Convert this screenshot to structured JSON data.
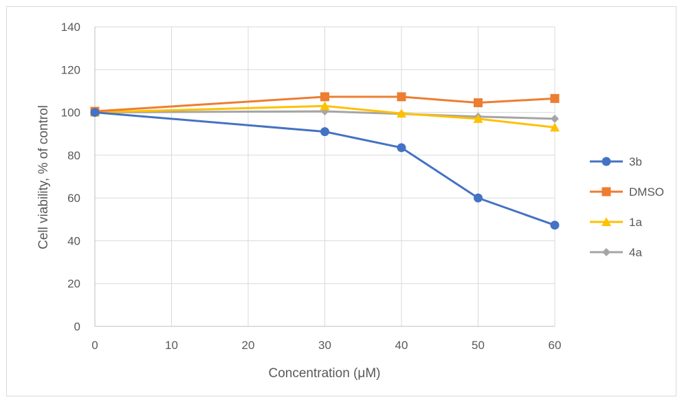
{
  "chart_data": {
    "type": "line",
    "title": "",
    "xlabel": "Concentration (μM)",
    "ylabel": "Cell viability, % of control",
    "xlim": [
      0,
      60
    ],
    "ylim": [
      0,
      140
    ],
    "x_ticks": [
      0,
      10,
      20,
      30,
      40,
      50,
      60
    ],
    "y_ticks": [
      0,
      20,
      40,
      60,
      80,
      100,
      120,
      140
    ],
    "grid": true,
    "legend_position": "right",
    "x": [
      0,
      30,
      40,
      50,
      60
    ],
    "series": [
      {
        "name": "3b",
        "color": "#4472C4",
        "marker": "circle",
        "values": [
          100,
          91,
          83.5,
          60,
          47.3
        ]
      },
      {
        "name": "DMSO",
        "color": "#ED7D31",
        "marker": "square",
        "values": [
          100.5,
          107.3,
          107.3,
          104.5,
          106.5
        ]
      },
      {
        "name": "1a",
        "color": "#FFC000",
        "marker": "triangle",
        "values": [
          100,
          103,
          99.5,
          97,
          93
        ]
      },
      {
        "name": "4a",
        "color": "#A5A5A5",
        "marker": "diamond",
        "values": [
          100,
          100.5,
          99.3,
          98,
          97
        ]
      }
    ]
  }
}
